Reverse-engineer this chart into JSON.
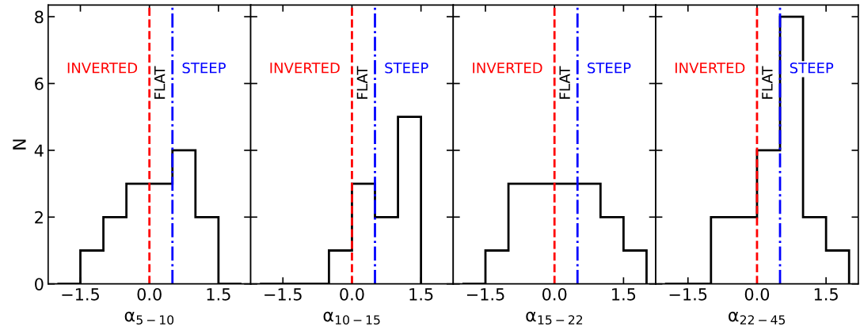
{
  "chart_data": [
    {
      "type": "histogram",
      "xlabel": "α$_{5−10}$",
      "ylabel": "N",
      "color": "#000000",
      "bins": [
        -2,
        -1.5,
        -1,
        -0.5,
        0,
        0.5,
        1,
        1.5,
        2
      ],
      "values": [
        0,
        1,
        2,
        3,
        3,
        4,
        2,
        0
      ],
      "xlim": [
        -2.2,
        2.2
      ],
      "ylim": [
        0,
        8.35
      ],
      "xticks": [
        {
          "value": -1.5,
          "label": "−1.5"
        },
        {
          "value": 0,
          "label": "0.0"
        },
        {
          "value": 1.5,
          "label": "1.5"
        }
      ],
      "yticks": [
        0,
        2,
        4,
        6,
        8
      ],
      "ref_lines": [
        {
          "axis": "x",
          "value": 0,
          "label": "INVERTED",
          "color": "#ff0000",
          "line_style": "dashed"
        },
        {
          "axis": "x",
          "value": 0.5,
          "label": "STEEP",
          "color": "#0000ff",
          "line_style": "dashdot"
        }
      ],
      "annotations": [
        "FLAT"
      ]
    },
    {
      "type": "histogram",
      "xlabel": "α$_{10−15}$",
      "color": "#000000",
      "bins": [
        -2,
        -1.5,
        -1,
        -0.5,
        0,
        0.5,
        1,
        1.5
      ],
      "values": [
        0,
        0,
        0,
        1,
        3,
        2,
        5
      ],
      "xlim": [
        -2.2,
        2.2
      ],
      "ylim": [
        0,
        8.35
      ],
      "xticks": [
        {
          "value": -1.5,
          "label": "−1.5"
        },
        {
          "value": 0,
          "label": "0.0"
        },
        {
          "value": 1.5,
          "label": "1.5"
        }
      ],
      "yticks": [
        0,
        2,
        4,
        6,
        8
      ],
      "tick_labels": "x",
      "ref_lines": [
        {
          "axis": "x",
          "value": 0,
          "label": "INVERTED",
          "color": "#ff0000",
          "line_style": "dashed"
        },
        {
          "axis": "x",
          "value": 0.5,
          "label": "STEEP",
          "color": "#0000ff",
          "line_style": "dashdot"
        }
      ],
      "annotations": [
        "FLAT"
      ]
    },
    {
      "type": "histogram",
      "xlabel": "α$_{15−22}$",
      "color": "#000000",
      "bins": [
        -2,
        -1.5,
        -1,
        -0.5,
        0,
        0.5,
        1,
        1.5,
        2
      ],
      "values": [
        0,
        1,
        3,
        3,
        3,
        3,
        2,
        1
      ],
      "xlim": [
        -2.2,
        2.2
      ],
      "ylim": [
        0,
        8.35
      ],
      "xticks": [
        {
          "value": -1.5,
          "label": "−1.5"
        },
        {
          "value": 0,
          "label": "0.0"
        },
        {
          "value": 1.5,
          "label": "1.5"
        }
      ],
      "yticks": [
        0,
        2,
        4,
        6,
        8
      ],
      "tick_labels": "x",
      "ref_lines": [
        {
          "axis": "x",
          "value": 0,
          "label": "INVERTED",
          "color": "#ff0000",
          "line_style": "dashed"
        },
        {
          "axis": "x",
          "value": 0.5,
          "label": "STEEP",
          "color": "#0000ff",
          "line_style": "dashdot"
        }
      ],
      "annotations": [
        "FLAT"
      ]
    },
    {
      "type": "histogram",
      "xlabel": "α$_{22−45}$",
      "color": "#000000",
      "bins": [
        -2,
        -1.5,
        -1,
        -0.5,
        0,
        0.5,
        1,
        1.5,
        2
      ],
      "values": [
        0,
        0,
        2,
        2,
        4,
        8,
        2,
        1
      ],
      "xlim": [
        -2.2,
        2.2
      ],
      "ylim": [
        0,
        8.35
      ],
      "xticks": [
        {
          "value": -1.5,
          "label": "−1.5"
        },
        {
          "value": 0,
          "label": "0.0"
        },
        {
          "value": 1.5,
          "label": "1.5"
        }
      ],
      "yticks": [
        0,
        2,
        4,
        6,
        8
      ],
      "tick_labels": "x",
      "ref_lines": [
        {
          "axis": "x",
          "value": 0,
          "label": "INVERTED",
          "color": "#ff0000",
          "line_style": "dashed"
        },
        {
          "axis": "x",
          "value": 0.5,
          "label": "STEEP",
          "color": "#0000ff",
          "line_style": "dashdot"
        }
      ],
      "annotations": [
        "FLAT"
      ]
    }
  ]
}
